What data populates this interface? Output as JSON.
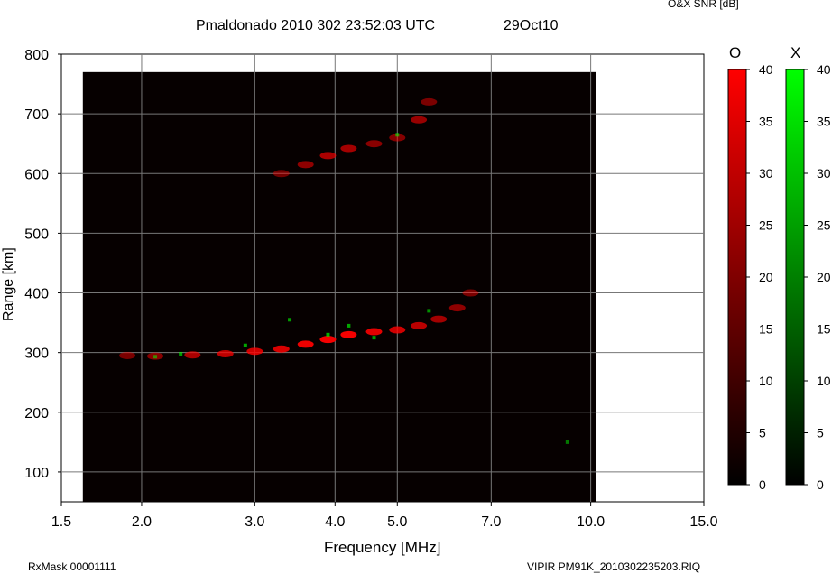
{
  "header": {
    "title": "Pmaldonado 2010 302 23:52:03 UTC",
    "date": "29Oct10",
    "colorbar_title": "O&X SNR [dB]"
  },
  "footer": {
    "rxmask": "RxMask 00001111",
    "file": "VIPIR  PM91K_2010302235203.RIQ"
  },
  "colorbars": {
    "o": {
      "label": "O",
      "color": "#ff0000",
      "ticks": [
        "40",
        "35",
        "30",
        "25",
        "20",
        "15",
        "10",
        "5",
        "0"
      ]
    },
    "x": {
      "label": "X",
      "color": "#00ff00",
      "ticks": [
        "40",
        "35",
        "30",
        "25",
        "20",
        "15",
        "10",
        "5",
        "0"
      ]
    }
  },
  "chart_data": {
    "type": "heatmap",
    "title": "Pmaldonado 2010 302 23:52:03 UTC",
    "xlabel": "Frequency [MHz]",
    "ylabel": "Range [km]",
    "x_scale": "log",
    "xlim": [
      1.5,
      15.0
    ],
    "ylim": [
      50,
      800
    ],
    "x_ticks": [
      1.5,
      2.0,
      3.0,
      4.0,
      5.0,
      7.0,
      10.0,
      15.0
    ],
    "x_tick_labels": [
      "1.5",
      "2.0",
      "3.0",
      "4.0",
      "5.0",
      "7.0",
      "10.0",
      "15.0"
    ],
    "y_ticks": [
      100,
      200,
      300,
      400,
      500,
      600,
      700,
      800
    ],
    "y_tick_labels": [
      "100",
      "200",
      "300",
      "400",
      "500",
      "600",
      "700",
      "800"
    ],
    "grid": true,
    "data_extent": {
      "freq": [
        1.62,
        10.2
      ],
      "range": [
        50,
        770
      ]
    },
    "colorscale": {
      "units": "dB",
      "min": 0,
      "max": 40
    },
    "series": [
      {
        "polarization": "O",
        "color": "#ff0000",
        "points": [
          {
            "f": 1.9,
            "r": 295,
            "snr": 12
          },
          {
            "f": 2.1,
            "r": 294,
            "snr": 15
          },
          {
            "f": 2.4,
            "r": 296,
            "snr": 22
          },
          {
            "f": 2.7,
            "r": 298,
            "snr": 26
          },
          {
            "f": 3.0,
            "r": 302,
            "snr": 30
          },
          {
            "f": 3.3,
            "r": 306,
            "snr": 32
          },
          {
            "f": 3.6,
            "r": 314,
            "snr": 36
          },
          {
            "f": 3.9,
            "r": 322,
            "snr": 38
          },
          {
            "f": 4.2,
            "r": 330,
            "snr": 38
          },
          {
            "f": 4.6,
            "r": 335,
            "snr": 34
          },
          {
            "f": 5.0,
            "r": 338,
            "snr": 30
          },
          {
            "f": 5.4,
            "r": 345,
            "snr": 25
          },
          {
            "f": 5.8,
            "r": 356,
            "snr": 20
          },
          {
            "f": 6.2,
            "r": 375,
            "snr": 16
          },
          {
            "f": 6.5,
            "r": 400,
            "snr": 12
          },
          {
            "f": 3.3,
            "r": 600,
            "snr": 10
          },
          {
            "f": 3.6,
            "r": 615,
            "snr": 16
          },
          {
            "f": 3.9,
            "r": 630,
            "snr": 22
          },
          {
            "f": 4.2,
            "r": 642,
            "snr": 20
          },
          {
            "f": 4.6,
            "r": 650,
            "snr": 15
          },
          {
            "f": 5.0,
            "r": 660,
            "snr": 14
          },
          {
            "f": 5.4,
            "r": 690,
            "snr": 18
          },
          {
            "f": 5.6,
            "r": 720,
            "snr": 12
          }
        ]
      },
      {
        "polarization": "X",
        "color": "#00ff00",
        "points": [
          {
            "f": 2.1,
            "r": 293,
            "snr": 14
          },
          {
            "f": 2.3,
            "r": 298,
            "snr": 18
          },
          {
            "f": 2.9,
            "r": 312,
            "snr": 20
          },
          {
            "f": 3.4,
            "r": 355,
            "snr": 18
          },
          {
            "f": 3.9,
            "r": 330,
            "snr": 22
          },
          {
            "f": 4.2,
            "r": 345,
            "snr": 20
          },
          {
            "f": 4.6,
            "r": 325,
            "snr": 18
          },
          {
            "f": 5.0,
            "r": 665,
            "snr": 16
          },
          {
            "f": 5.6,
            "r": 370,
            "snr": 15
          },
          {
            "f": 9.2,
            "r": 150,
            "snr": 10
          }
        ]
      }
    ]
  }
}
